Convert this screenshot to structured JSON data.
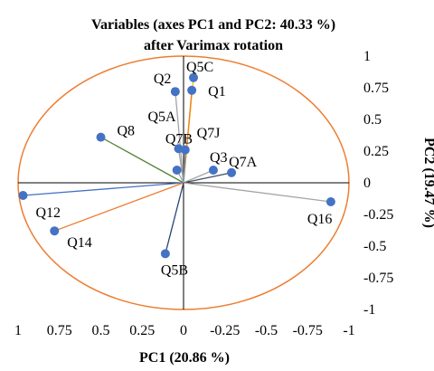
{
  "chart_data": {
    "type": "scatter",
    "subtype": "biplot-correlation-circle",
    "title_line1": "Variables (axes PC1 and PC2: 40.33 %)",
    "title_line2": "after Varimax rotation",
    "xlabel": "PC1 (20.86 %)",
    "ylabel": "PC2 (19.47 %)",
    "xlim": [
      1,
      -1
    ],
    "ylim": [
      -1,
      1
    ],
    "x_ticks": [
      "1",
      "0.75",
      "0.5",
      "0.25",
      "0",
      "-0.25",
      "-0.5",
      "-0.75",
      "-1"
    ],
    "x_tick_values": [
      1,
      0.75,
      0.5,
      0.25,
      0,
      -0.25,
      -0.5,
      -0.75,
      -1
    ],
    "y_ticks": [
      "1",
      "0.75",
      "0.5",
      "0.25",
      "0",
      "-0.25",
      "-0.5",
      "-0.75",
      "-1"
    ],
    "y_tick_values": [
      1,
      0.75,
      0.5,
      0.25,
      0,
      -0.25,
      -0.5,
      -0.75,
      -1
    ],
    "grid": false,
    "circle_color": "#ED7D31",
    "point_color": "#4472C4",
    "points": [
      {
        "label": "Q5C",
        "x": -0.06,
        "y": 0.83,
        "vector_color": "#FFC000"
      },
      {
        "label": "Q2",
        "x": 0.05,
        "y": 0.72,
        "vector_color": "#A5A5A5"
      },
      {
        "label": "Q1",
        "x": -0.05,
        "y": 0.73,
        "vector_color": "#ED7D31"
      },
      {
        "label": "Q8",
        "x": 0.5,
        "y": 0.36,
        "vector_color": "#548235"
      },
      {
        "label": "Q5A",
        "x": 0.03,
        "y": 0.27,
        "vector_color": "#A5A5A5"
      },
      {
        "label": "Q7B",
        "x": -0.01,
        "y": 0.26,
        "vector_color": "#5B9BD5"
      },
      {
        "label": "Q7J",
        "x": 0.04,
        "y": 0.1,
        "vector_color": "#A5A5A5"
      },
      {
        "label": "Q3",
        "x": -0.18,
        "y": 0.1,
        "vector_color": "#A5A5A5"
      },
      {
        "label": "Q7A",
        "x": -0.29,
        "y": 0.08,
        "vector_color": "#44546A"
      },
      {
        "label": "Q16",
        "x": -0.89,
        "y": -0.15,
        "vector_color": "#A5A5A5"
      },
      {
        "label": "Q12",
        "x": 0.97,
        "y": -0.1,
        "vector_color": "#4472C4"
      },
      {
        "label": "Q14",
        "x": 0.78,
        "y": -0.38,
        "vector_color": "#ED7D31"
      },
      {
        "label": "Q5B",
        "x": 0.11,
        "y": -0.56,
        "vector_color": "#264478"
      }
    ]
  }
}
